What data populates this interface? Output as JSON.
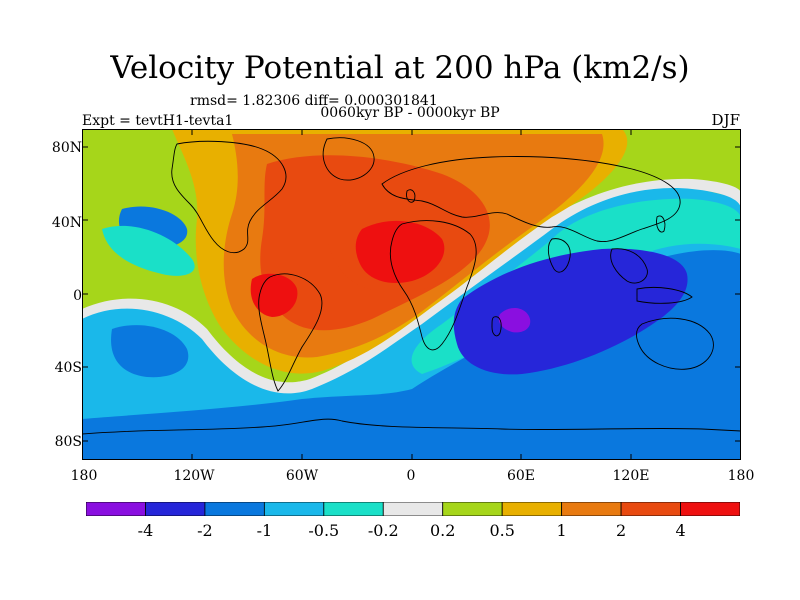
{
  "title": "Velocity Potential at 200 hPa (km2/s)",
  "stats": "rmsd= 1.82306  diff= 0.000301841",
  "period": "0060kyr BP - 0000kyr BP",
  "experiment": "Expt = tevtH1-tevta1",
  "season": "DJF",
  "lat_labels": [
    "80N",
    "40N",
    "0",
    "40S",
    "80S"
  ],
  "lon_labels": [
    "180",
    "120W",
    "60W",
    "0",
    "60E",
    "120E",
    "180"
  ],
  "colorbar": {
    "labels": [
      "-4",
      "-2",
      "-1",
      "-0.5",
      "-0.2",
      "0.2",
      "0.5",
      "1",
      "2",
      "4"
    ],
    "colors": [
      "#8a0fe0",
      "#2626d9",
      "#0a78de",
      "#1ab8ea",
      "#1ae0c8",
      "#e8e8e8",
      "#a6d61a",
      "#e8b000",
      "#e87a10",
      "#e84a10",
      "#ee1010"
    ]
  },
  "map_colors": {
    "ocean_default": "#1ab8ea",
    "coast": "#000000"
  }
}
